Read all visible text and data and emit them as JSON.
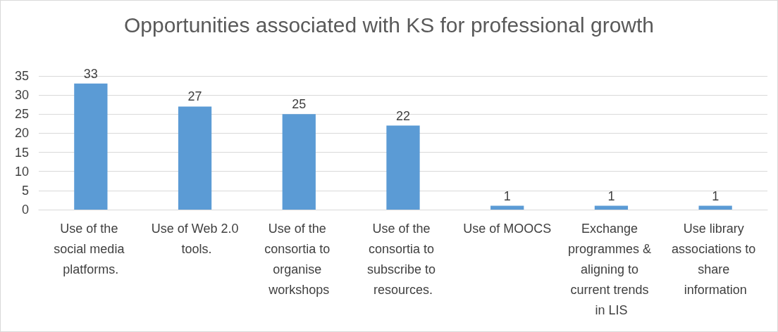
{
  "chart_data": {
    "type": "bar",
    "title": "Opportunities associated with KS for professional growth",
    "categories": [
      "Use of the social media platforms.",
      "Use of Web 2.0 tools.",
      "Use of the consortia to organise workshops",
      "Use of the consortia to subscribe to resources.",
      "Use of MOOCS",
      "Exchange programmes & aligning to current trends in LIS",
      "Use library associations to share information"
    ],
    "values": [
      33,
      27,
      25,
      22,
      1,
      1,
      1
    ],
    "color": "#5b9bd5",
    "data_labels": true,
    "ylim": [
      0,
      35
    ],
    "yticks": [
      0,
      5,
      10,
      15,
      20,
      25,
      30,
      35
    ],
    "grid": "y"
  }
}
